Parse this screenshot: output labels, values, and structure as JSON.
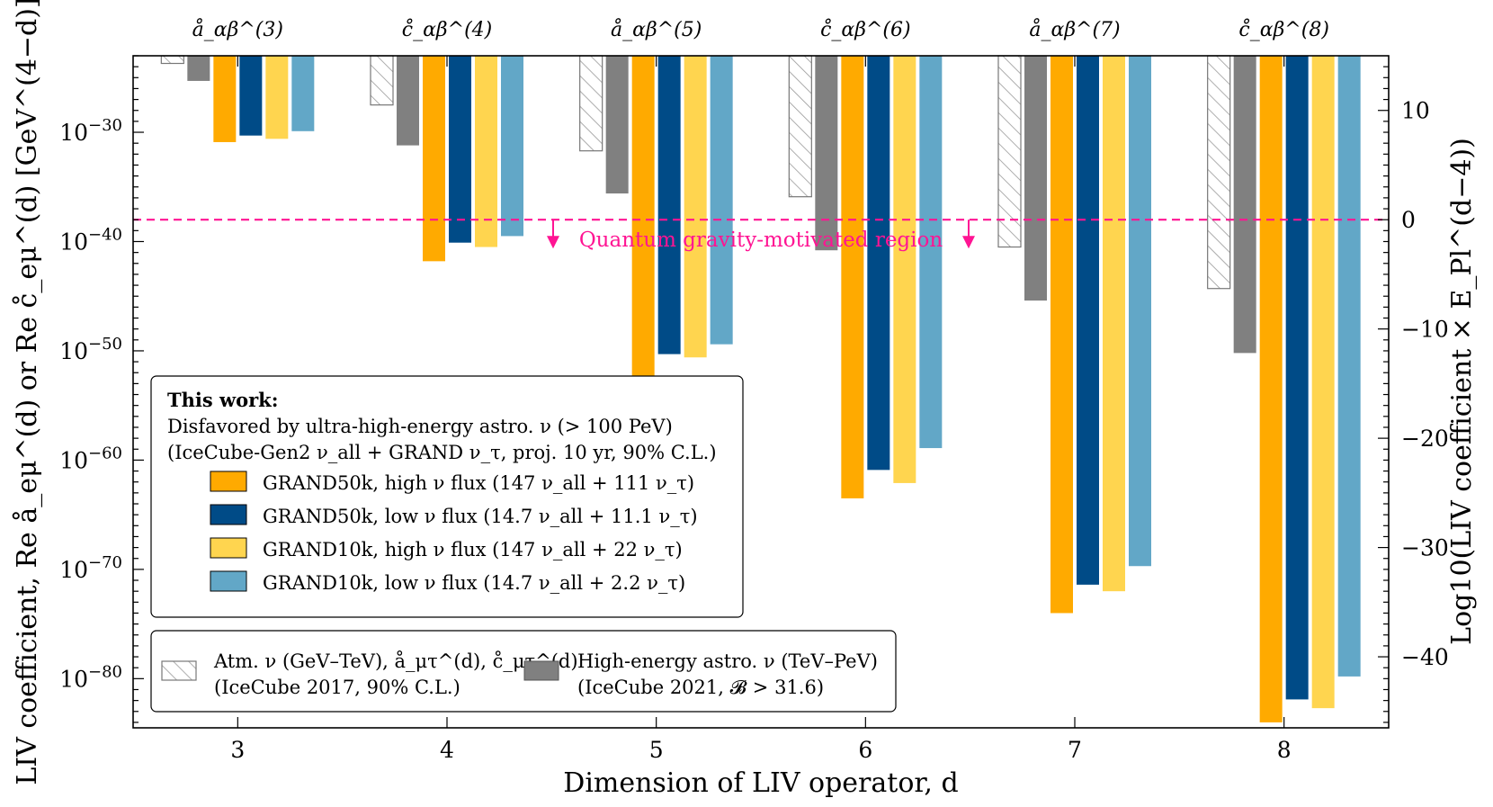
{
  "chart_data": {
    "type": "bar",
    "xlabel": "Dimension of LIV operator, d",
    "ylabel_left": "LIV coefficient, Re å_eμ^(d) or Re c̊_eμ^(d) [GeV^(4−d)]",
    "ylabel_right": "Log10(LIV coefficient × E_Pl^(d−4))",
    "categories": [
      "3",
      "4",
      "5",
      "6",
      "7",
      "8"
    ],
    "top_labels": [
      "å_αβ^(3)",
      "c̊_αβ^(4)",
      "å_αβ^(5)",
      "c̊_αβ^(6)",
      "å_αβ^(7)",
      "c̊_αβ^(8)"
    ],
    "left_ticks": [
      {
        "base": "10",
        "exp": "−30",
        "value": -30
      },
      {
        "base": "10",
        "exp": "−40",
        "value": -40
      },
      {
        "base": "10",
        "exp": "−50",
        "value": -50
      },
      {
        "base": "10",
        "exp": "−60",
        "value": -60
      },
      {
        "base": "10",
        "exp": "−70",
        "value": -70
      },
      {
        "base": "10",
        "exp": "−80",
        "value": -80
      }
    ],
    "right_ticks": [
      "10",
      "0",
      "−10",
      "−20",
      "−30",
      "−40"
    ],
    "right_tick_values": [
      10,
      0,
      -10,
      -20,
      -30,
      -40
    ],
    "ylim_log10": [
      -84.5,
      -23
    ],
    "planck_log10_gev": 19.09,
    "series": [
      {
        "name": "Atm. ν (IceCube 2017)",
        "color": "#ffffff",
        "hatch": true,
        "values": [
          -23.7,
          -27.5,
          -31.7,
          -35.9,
          -40.5,
          -44.3
        ]
      },
      {
        "name": "High-energy astro. ν (IceCube 2021)",
        "color": "#808080",
        "values": [
          -25.3,
          -31.2,
          -35.6,
          -40.8,
          -45.4,
          -50.2
        ]
      },
      {
        "name": "GRAND50k, high ν flux",
        "color": "#ffaa00",
        "values": [
          -30.9,
          -41.8,
          -52.8,
          -63.5,
          -74.0,
          -84.0
        ]
      },
      {
        "name": "GRAND50k, low ν flux",
        "color": "#004b87",
        "values": [
          -30.3,
          -40.1,
          -50.3,
          -60.9,
          -71.4,
          -81.9
        ]
      },
      {
        "name": "GRAND10k, high ν flux",
        "color": "#ffd54f",
        "values": [
          -30.6,
          -40.5,
          -50.6,
          -62.1,
          -72.0,
          -82.7
        ]
      },
      {
        "name": "GRAND10k, low ν flux",
        "color": "#62a7c7",
        "values": [
          -29.9,
          -39.5,
          -49.4,
          -58.9,
          -69.7,
          -79.8
        ]
      }
    ],
    "threshold": {
      "log10": -38.0,
      "label": "Quantum gravity-motivated region",
      "color": "#ff1493"
    }
  },
  "legend_main": {
    "title": "This work:",
    "line1": "Disfavored by ultra-high-energy astro. ν (> 100 PeV)",
    "line2": "(IceCube-Gen2 ν_all + GRAND ν_τ, proj. 10 yr, 90% C.L.)",
    "items": [
      "GRAND50k, high ν flux (147 ν_all + 111 ν_τ)",
      "GRAND50k, low ν flux  (14.7 ν_all + 11.1 ν_τ)",
      "GRAND10k, high ν flux (147 ν_all + 22 ν_τ)",
      "GRAND10k, low ν flux  (14.7 ν_all + 2.2 ν_τ)"
    ]
  },
  "legend_bottom": {
    "atm_line1": "Atm. ν (GeV–TeV), å_μτ^(d), c̊_μτ^(d)",
    "atm_line2": "(IceCube 2017, 90% C.L.)",
    "he_line1": "High-energy astro. ν (TeV–PeV)",
    "he_line2": "(IceCube 2021, 𝓑 > 31.6)"
  }
}
